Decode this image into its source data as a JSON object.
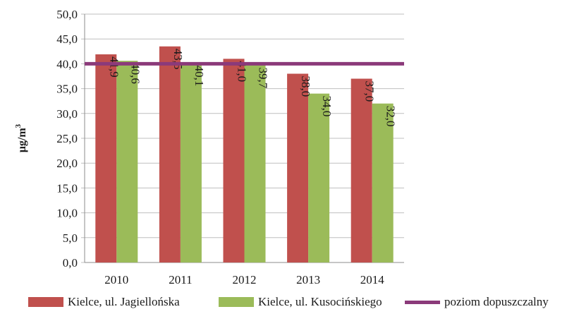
{
  "chart_data": {
    "type": "bar",
    "ylabel": "μg/m",
    "ylabel_superscript": "3",
    "categories": [
      "2010",
      "2011",
      "2012",
      "2013",
      "2014"
    ],
    "ylim": [
      0,
      50
    ],
    "yticks": [
      "0,0",
      "5,0",
      "10,0",
      "15,0",
      "20,0",
      "25,0",
      "30,0",
      "35,0",
      "40,0",
      "45,0",
      "50,0"
    ],
    "grid": true,
    "legend_position": "bottom",
    "series": [
      {
        "name": "Kielce, ul. Jagiellońska",
        "type": "bar",
        "color": "#c0504d",
        "values": [
          41.9,
          43.5,
          41.0,
          38.0,
          37.0
        ],
        "labels": [
          "41,9",
          "43,5",
          "41,0",
          "38,0",
          "37,0"
        ]
      },
      {
        "name": "Kielce, ul. Kusocińskiego",
        "type": "bar",
        "color": "#9bbb59",
        "values": [
          40.6,
          40.1,
          39.7,
          34.0,
          32.0
        ],
        "labels": [
          "40,6",
          "40,1",
          "39,7",
          "34,0",
          "32,0"
        ]
      },
      {
        "name": "poziom dopuszczalny",
        "type": "line",
        "color": "#8b3a7a",
        "value": 40.0
      }
    ]
  }
}
